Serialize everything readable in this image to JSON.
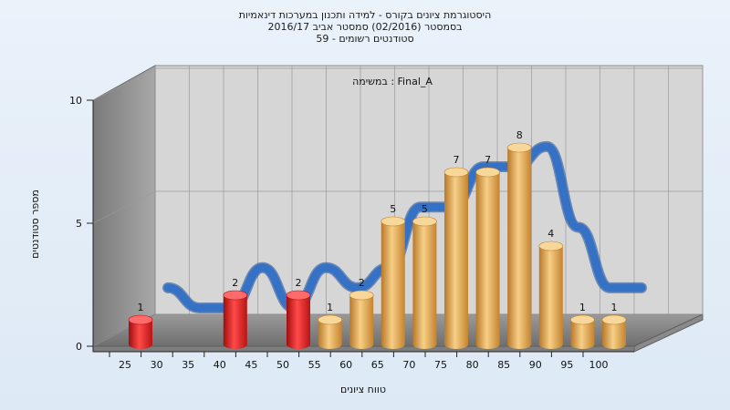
{
  "chart_data": {
    "type": "bar",
    "title_lines": [
      "היסטוגרמת ציונים בקורס - למידה ותכנון במערכות דינאמיות",
      "בסמסטר  (02/2016)  סמסטר אביב 2016/17",
      "סטודנטים רשומים - 59"
    ],
    "annotation": "במשימה : Final_A",
    "xlabel": "טווח ציונים",
    "ylabel": "מספר סטודנטים",
    "x_ticks": [
      "25",
      "30",
      "35",
      "40",
      "45",
      "50",
      "55",
      "60",
      "65",
      "70",
      "75",
      "80",
      "85",
      "90",
      "95",
      "100"
    ],
    "y_ticks": [
      "0",
      "5",
      "10"
    ],
    "ylim": [
      0,
      10
    ],
    "bins": [
      "25-30",
      "30-35",
      "35-40",
      "40-45",
      "45-50",
      "50-55",
      "55-60",
      "60-65",
      "65-70",
      "70-75",
      "75-80",
      "80-85",
      "85-90",
      "90-95",
      "95-100",
      "100"
    ],
    "values": [
      1,
      0,
      0,
      2,
      0,
      2,
      1,
      2,
      5,
      5,
      7,
      7,
      8,
      4,
      1,
      1
    ],
    "data_labels": [
      "1",
      "",
      "",
      "2",
      "",
      "2",
      "1",
      "2",
      "5",
      "5",
      "7",
      "7",
      "8",
      "4",
      "1",
      "1"
    ],
    "bar_colors": [
      "#e42020",
      "",
      "",
      "#e42020",
      "",
      "#e42020",
      "#eaa94a",
      "#eaa94a",
      "#eaa94a",
      "#eaa94a",
      "#eaa94a",
      "#eaa94a",
      "#eaa94a",
      "#eaa94a",
      "#eaa94a",
      "#eaa94a"
    ],
    "fail_color": "#e42020",
    "pass_color": "#eaa94a",
    "curve_color": "#3572c6",
    "grid": true
  }
}
